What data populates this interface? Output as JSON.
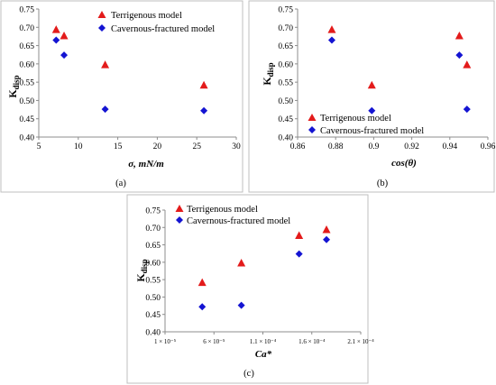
{
  "colors": {
    "terrigenous": "#e31b1b",
    "cavernous": "#1414d2"
  },
  "chart_data": [
    {
      "type": "scatter",
      "panel_label": "(a)",
      "xlabel": "σ, mN/m",
      "ylabel": "K",
      "ylabel_sub": "disp",
      "xlim": [
        5,
        30
      ],
      "ylim": [
        0.4,
        0.75
      ],
      "xticks": [
        "5",
        "10",
        "15",
        "20",
        "25",
        "30"
      ],
      "yticks": [
        "0.40",
        "0.45",
        "0.50",
        "0.55",
        "0.60",
        "0.65",
        "0.70",
        "0.75"
      ],
      "legend_position": "top-right",
      "series": [
        {
          "name": "Terrigenous model",
          "marker": "triangle",
          "x": [
            7.2,
            8.2,
            13.4,
            25.9
          ],
          "y": [
            0.693,
            0.676,
            0.597,
            0.541
          ]
        },
        {
          "name": "Cavernous-fractured model",
          "marker": "diamond",
          "x": [
            7.2,
            8.2,
            13.4,
            25.9
          ],
          "y": [
            0.665,
            0.624,
            0.476,
            0.472
          ]
        }
      ]
    },
    {
      "type": "scatter",
      "panel_label": "(b)",
      "xlabel": "cos(θ)",
      "ylabel": "K",
      "ylabel_sub": "disp",
      "xlim": [
        0.86,
        0.96
      ],
      "ylim": [
        0.4,
        0.75
      ],
      "xticks": [
        "0.86",
        "0.88",
        "0.9",
        "0.92",
        "0.94",
        "0.96"
      ],
      "yticks": [
        "0.40",
        "0.45",
        "0.50",
        "0.55",
        "0.60",
        "0.65",
        "0.70",
        "0.75"
      ],
      "legend_position": "bottom-left",
      "series": [
        {
          "name": "Terrigenous model",
          "marker": "triangle",
          "x": [
            0.878,
            0.899,
            0.945,
            0.949
          ],
          "y": [
            0.693,
            0.541,
            0.676,
            0.597
          ]
        },
        {
          "name": "Cavernous-fractured model",
          "marker": "diamond",
          "x": [
            0.878,
            0.899,
            0.945,
            0.949
          ],
          "y": [
            0.665,
            0.472,
            0.624,
            0.476
          ]
        }
      ]
    },
    {
      "type": "scatter",
      "panel_label": "(c)",
      "xlabel": "Ca*",
      "ylabel": "K",
      "ylabel_sub": "disp",
      "xlim": [
        1e-05,
        0.00021
      ],
      "ylim": [
        0.4,
        0.75
      ],
      "xticks": [
        "1 × 10⁻⁵",
        "6 × 10⁻⁵",
        "1.1 × 10⁻⁴",
        "1.6 × 10⁻⁴",
        "2.1 × 10⁻⁴"
      ],
      "yticks": [
        "0.40",
        "0.45",
        "0.50",
        "0.55",
        "0.60",
        "0.65",
        "0.70",
        "0.75"
      ],
      "legend_position": "top-left",
      "series": [
        {
          "name": "Terrigenous model",
          "marker": "triangle",
          "x": [
            4.8e-05,
            8.8e-05,
            0.000147,
            0.000175
          ],
          "y": [
            0.541,
            0.597,
            0.676,
            0.693
          ]
        },
        {
          "name": "Cavernous-fractured model",
          "marker": "diamond",
          "x": [
            4.8e-05,
            8.8e-05,
            0.000147,
            0.000175
          ],
          "y": [
            0.472,
            0.476,
            0.624,
            0.665
          ]
        }
      ]
    }
  ]
}
